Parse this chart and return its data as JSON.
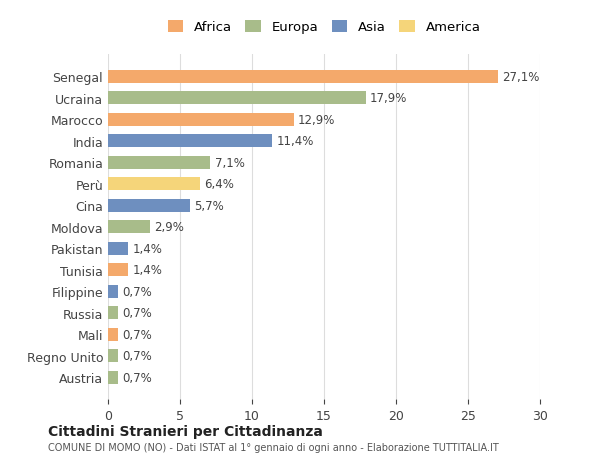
{
  "countries": [
    "Senegal",
    "Ucraina",
    "Marocco",
    "India",
    "Romania",
    "Perù",
    "Cina",
    "Moldova",
    "Pakistan",
    "Tunisia",
    "Filippine",
    "Russia",
    "Mali",
    "Regno Unito",
    "Austria"
  ],
  "values": [
    27.1,
    17.9,
    12.9,
    11.4,
    7.1,
    6.4,
    5.7,
    2.9,
    1.4,
    1.4,
    0.7,
    0.7,
    0.7,
    0.7,
    0.7
  ],
  "continents": [
    "Africa",
    "Europa",
    "Africa",
    "Asia",
    "Europa",
    "America",
    "Asia",
    "Europa",
    "Asia",
    "Africa",
    "Asia",
    "Europa",
    "Africa",
    "Europa",
    "Europa"
  ],
  "continent_colors": {
    "Africa": "#F4A96B",
    "Europa": "#A8BC8A",
    "Asia": "#6E8FBF",
    "America": "#F5D57A"
  },
  "legend_order": [
    "Africa",
    "Europa",
    "Asia",
    "America"
  ],
  "xlim": [
    0,
    30
  ],
  "xticks": [
    0,
    5,
    10,
    15,
    20,
    25,
    30
  ],
  "title": "Cittadini Stranieri per Cittadinanza",
  "subtitle": "COMUNE DI MOMO (NO) - Dati ISTAT al 1° gennaio di ogni anno - Elaborazione TUTTITALIA.IT",
  "background_color": "#ffffff",
  "grid_color": "#dddddd"
}
